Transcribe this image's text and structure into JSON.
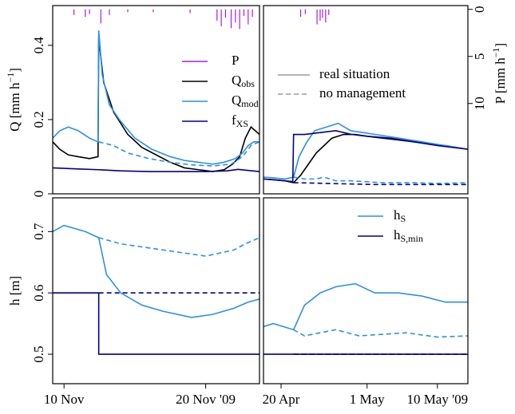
{
  "chart_data": [
    {
      "type": "line",
      "xlim": [
        313.2,
        327.8
      ],
      "ylim": [
        0,
        0.507
      ],
      "yticks": [
        0,
        0.2,
        0.4
      ],
      "ylabel": "Q [mm h",
      "ylabel_sup": "−1",
      "ylabel_end": "]",
      "y2lim": [
        19.6,
        -0.4
      ],
      "legend": "center right",
      "series": [
        {
          "name": "P",
          "color": "#a020f0",
          "type": "bar",
          "axis": "y2",
          "x": [
            314.7,
            315.5,
            315.8,
            316.6,
            317.2,
            318.5,
            320.3,
            322.9,
            324.8,
            325.1,
            325.4,
            325.8,
            326.1,
            326.4,
            326.7,
            327.0,
            327.3
          ],
          "values": [
            0.6,
            0.8,
            0.5,
            1.5,
            0.6,
            0.3,
            0.3,
            0.4,
            1.2,
            1.8,
            0.9,
            2.0,
            1.4,
            2.1,
            0.7,
            1.6,
            0.8
          ]
        },
        {
          "name": "Q",
          "name_sub": "obs",
          "color": "#000000",
          "linestyle": "solid",
          "x": [
            313.2,
            313.7,
            314.3,
            315,
            315.8,
            316.4,
            316.45,
            316.8,
            317.5,
            318.5,
            319.5,
            320.5,
            321.5,
            322.5,
            323.5,
            324.5,
            325.3,
            325.9,
            326.4,
            326.8,
            327.2,
            327.5,
            327.8
          ],
          "values": [
            0.14,
            0.12,
            0.105,
            0.1,
            0.095,
            0.1,
            0.42,
            0.3,
            0.22,
            0.16,
            0.125,
            0.105,
            0.085,
            0.07,
            0.065,
            0.06,
            0.065,
            0.08,
            0.1,
            0.15,
            0.18,
            0.17,
            0.16
          ]
        },
        {
          "name": "Q",
          "name_sub": "mod",
          "color": "#2b8fe8",
          "linestyle": "solid",
          "x": [
            313.2,
            313.7,
            314.3,
            315,
            315.8,
            316.4,
            316.45,
            316.7,
            317.2,
            317.9,
            319,
            320.2,
            321.5,
            322.5,
            323.5,
            324.5,
            325.3,
            326.1,
            326.6,
            327,
            327.4,
            327.8
          ],
          "values": [
            0.15,
            0.17,
            0.18,
            0.17,
            0.15,
            0.14,
            0.44,
            0.32,
            0.24,
            0.2,
            0.15,
            0.12,
            0.1,
            0.09,
            0.085,
            0.08,
            0.085,
            0.095,
            0.11,
            0.13,
            0.14,
            0.14
          ]
        },
        {
          "color": "#2b8fe8",
          "linestyle": "dashed",
          "x": [
            316.45,
            317.5,
            318.5,
            320,
            321.5,
            323,
            324.5,
            325.8,
            326.6,
            327.2,
            327.8
          ],
          "values": [
            0.14,
            0.13,
            0.11,
            0.095,
            0.085,
            0.078,
            0.075,
            0.08,
            0.1,
            0.13,
            0.14
          ]
        },
        {
          "name": "f",
          "name_sub": "XS",
          "color": "#00008b",
          "linestyle": "solid",
          "x": [
            313.2,
            315,
            316.45,
            318,
            320,
            322,
            324,
            325.5,
            326.3,
            327,
            327.8
          ],
          "values": [
            0.07,
            0.067,
            0.065,
            0.062,
            0.06,
            0.06,
            0.06,
            0.062,
            0.066,
            0.063,
            0.06
          ]
        }
      ]
    },
    {
      "type": "line",
      "xlim": [
        107.75,
        133.9
      ],
      "ylim": [
        0,
        0.507
      ],
      "y2lim": [
        19.6,
        -0.4
      ],
      "y2ticks": [
        0,
        5,
        10
      ],
      "y2label": "P [mm h",
      "y2label_sup": "−1",
      "y2label_end": "]",
      "linestyle_legend": [
        {
          "label": "real situation",
          "dash": false
        },
        {
          "label": "no management",
          "dash": true
        }
      ],
      "series": [
        {
          "color": "#a020f0",
          "type": "bar",
          "axis": "y2",
          "x": [
            112.5,
            113.1,
            114.6,
            115.0,
            115.3,
            115.7,
            116.1
          ],
          "values": [
            0.8,
            0.5,
            1.6,
            1.2,
            0.9,
            1.4,
            0.6
          ]
        },
        {
          "color": "#000000",
          "linestyle": "solid",
          "x": [
            107.75,
            109,
            110.5,
            111.6,
            112.5,
            113.5,
            114.5,
            115.5,
            116.5,
            118,
            119.5,
            121,
            123,
            125,
            127,
            129,
            131,
            133.9
          ],
          "values": [
            0.04,
            0.038,
            0.035,
            0.03,
            0.05,
            0.08,
            0.11,
            0.13,
            0.15,
            0.16,
            0.16,
            0.155,
            0.15,
            0.145,
            0.14,
            0.135,
            0.13,
            0.12
          ]
        },
        {
          "color": "#2b8fe8",
          "linestyle": "solid",
          "x": [
            107.75,
            109,
            110.5,
            111.6,
            112.3,
            113.3,
            114.3,
            115.8,
            117.3,
            118.9,
            120.5,
            122,
            125.1,
            128,
            131,
            133.9
          ],
          "values": [
            0.045,
            0.043,
            0.04,
            0.045,
            0.1,
            0.14,
            0.17,
            0.18,
            0.19,
            0.17,
            0.165,
            0.16,
            0.15,
            0.14,
            0.13,
            0.12
          ]
        },
        {
          "color": "#2b8fe8",
          "linestyle": "dashed",
          "x": [
            111.6,
            113,
            114.5,
            115.5,
            117,
            119,
            123,
            127,
            130,
            133.9
          ],
          "values": [
            0.045,
            0.04,
            0.04,
            0.045,
            0.035,
            0.035,
            0.03,
            0.03,
            0.028,
            0.03
          ]
        },
        {
          "color": "#00008b",
          "linestyle": "solid",
          "x": [
            107.75,
            109,
            110.5,
            111.5,
            111.6,
            113,
            115,
            117,
            119,
            121,
            124,
            127,
            130,
            133.9
          ],
          "values": [
            0.04,
            0.038,
            0.035,
            0.033,
            0.16,
            0.16,
            0.165,
            0.17,
            0.16,
            0.155,
            0.15,
            0.14,
            0.13,
            0.12
          ]
        },
        {
          "color": "#00008b",
          "linestyle": "dashed",
          "x": [
            111.6,
            116,
            122,
            128,
            133.9
          ],
          "values": [
            0.03,
            0.028,
            0.025,
            0.025,
            0.025
          ]
        }
      ]
    },
    {
      "type": "line",
      "xlim": [
        313.2,
        327.8
      ],
      "ylim": [
        0.452,
        0.755
      ],
      "yticks": [
        0.5,
        0.6,
        0.7
      ],
      "xticks": [
        {
          "value": 314,
          "label": "10 Nov"
        },
        {
          "value": 324,
          "label": "20 Nov '09"
        }
      ],
      "ylabel": "h [m]",
      "series": [
        {
          "color": "#2b8fe8",
          "linestyle": "solid",
          "x": [
            313.2,
            314,
            315.5,
            316.45,
            317,
            318,
            319.5,
            321,
            323,
            324.5,
            326,
            327,
            327.8
          ],
          "values": [
            0.7,
            0.71,
            0.7,
            0.69,
            0.63,
            0.6,
            0.58,
            0.57,
            0.56,
            0.565,
            0.575,
            0.585,
            0.59
          ]
        },
        {
          "color": "#2b8fe8",
          "linestyle": "dashed",
          "x": [
            316.45,
            318,
            321,
            324,
            326,
            326.8,
            327.8
          ],
          "values": [
            0.69,
            0.68,
            0.67,
            0.66,
            0.67,
            0.68,
            0.69
          ]
        },
        {
          "color": "#00008b",
          "linestyle": "solid",
          "x": [
            313.2,
            316.45,
            316.45,
            327.8
          ],
          "values": [
            0.6,
            0.6,
            0.5,
            0.5
          ]
        },
        {
          "color": "#00008b",
          "linestyle": "dashed",
          "x": [
            316.45,
            327.8
          ],
          "values": [
            0.6,
            0.6
          ]
        }
      ]
    },
    {
      "type": "line",
      "xlim": [
        107.75,
        133.9
      ],
      "ylim": [
        0.452,
        0.755
      ],
      "legend": "upper right",
      "xticks": [
        {
          "value": 110,
          "label": "20 Apr"
        },
        {
          "value": 121,
          "label": "1 May"
        },
        {
          "value": 130,
          "label": "10 May '09"
        }
      ],
      "series": [
        {
          "name": "h",
          "name_sub": "S",
          "color": "#2b8fe8",
          "linestyle": "solid",
          "x": [
            107.75,
            109,
            111.6,
            113,
            115,
            117,
            119.5,
            122,
            125,
            128,
            131,
            133.9
          ],
          "values": [
            0.545,
            0.55,
            0.54,
            0.58,
            0.6,
            0.61,
            0.615,
            0.6,
            0.6,
            0.595,
            0.585,
            0.585
          ]
        },
        {
          "color": "#2b8fe8",
          "linestyle": "dashed",
          "x": [
            111.6,
            113,
            115,
            117,
            120,
            126,
            130,
            133.9
          ],
          "values": [
            0.54,
            0.53,
            0.535,
            0.54,
            0.53,
            0.535,
            0.528,
            0.53
          ]
        },
        {
          "name": "h",
          "name_sub": "S,min",
          "color": "#00008b",
          "linestyle": "solid",
          "x": [
            107.75,
            133.9
          ],
          "values": [
            0.5,
            0.5
          ]
        },
        {
          "color": "#00008b",
          "linestyle": "dashed",
          "x": [
            111.6,
            133.9
          ],
          "values": [
            0.5,
            0.5
          ]
        }
      ]
    }
  ]
}
